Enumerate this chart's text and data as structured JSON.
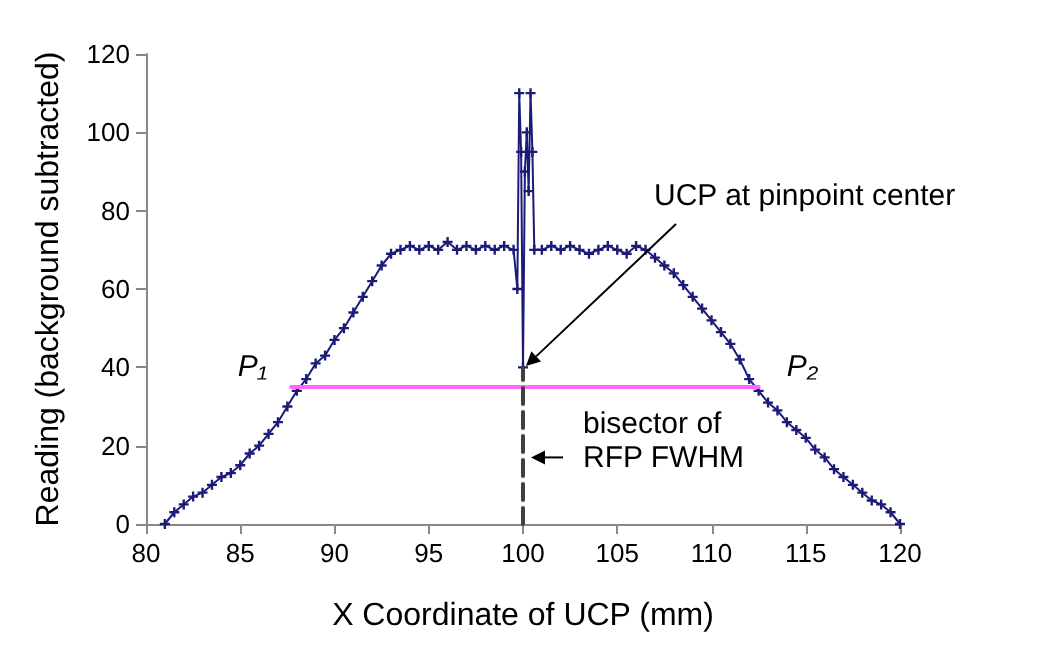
{
  "chart_data": {
    "type": "line",
    "xlabel": "X Coordinate of UCP (mm)",
    "ylabel": "Reading (background subtracted)",
    "xlim": [
      80,
      120
    ],
    "xticks": [
      80,
      85,
      90,
      95,
      100,
      105,
      110,
      115,
      120
    ],
    "ylim": [
      0,
      120
    ],
    "yticks": [
      0,
      20,
      40,
      60,
      80,
      100,
      120
    ],
    "grid": false,
    "series": [
      {
        "color": "#1c1c78",
        "marker": "cross",
        "line_style": "solid",
        "x": [
          81,
          81.5,
          82,
          82.5,
          83,
          83.5,
          84,
          84.5,
          85,
          85.5,
          86,
          86.5,
          87,
          87.5,
          88,
          88.5,
          89,
          89.5,
          90,
          90.5,
          91,
          91.5,
          92,
          92.5,
          93,
          93.5,
          94,
          94.5,
          95,
          95.5,
          96,
          96.5,
          97,
          97.5,
          98,
          98.5,
          99,
          99.5,
          99.7,
          99.8,
          99.9,
          100,
          100.1,
          100.2,
          100.3,
          100.4,
          100.5,
          100.6,
          101,
          101.5,
          102,
          102.5,
          103,
          103.5,
          104,
          104.5,
          105,
          105.5,
          106,
          106.5,
          107,
          107.5,
          108,
          108.5,
          109,
          109.5,
          110,
          110.5,
          111,
          111.5,
          112,
          112.5,
          113,
          113.5,
          114,
          114.5,
          115,
          115.5,
          116,
          116.5,
          117,
          117.5,
          118,
          118.5,
          119,
          119.5,
          120
        ],
        "values": [
          0,
          3,
          5,
          7,
          8,
          10,
          12,
          13,
          15,
          18,
          20,
          23,
          26,
          30,
          34,
          37,
          41,
          43,
          47,
          50,
          54,
          58,
          62,
          66,
          69,
          70,
          71,
          70,
          71,
          70,
          72,
          70,
          71,
          70,
          71,
          70,
          71,
          70,
          60,
          110,
          95,
          40,
          90,
          100,
          85,
          110,
          95,
          70,
          70,
          71,
          70,
          71,
          70,
          69,
          70,
          71,
          70,
          69,
          71,
          70,
          68,
          66,
          64,
          61,
          58,
          55,
          52,
          49,
          46,
          42,
          37,
          34,
          31,
          29,
          26,
          24,
          22,
          19,
          17,
          14,
          12,
          10,
          8,
          6,
          5,
          3,
          0
        ]
      },
      {
        "color": "#ff66ff",
        "marker": "none",
        "line_style": "solid",
        "x": [
          87.7,
          112.5
        ],
        "values": [
          35,
          35
        ]
      },
      {
        "color": "#404040",
        "marker": "none",
        "line_style": "dashed",
        "x": [
          100,
          100
        ],
        "values": [
          0,
          40
        ]
      }
    ],
    "annotations": [
      "UCP at pinpoint center",
      {
        "text": "bisector of\nRFP FWHM",
        "x": 100,
        "y": 17
      },
      {
        "text": "P₁",
        "x": 87.7,
        "y": 35
      },
      {
        "text": "P₂",
        "x": 112.5,
        "y": 35
      }
    ]
  }
}
